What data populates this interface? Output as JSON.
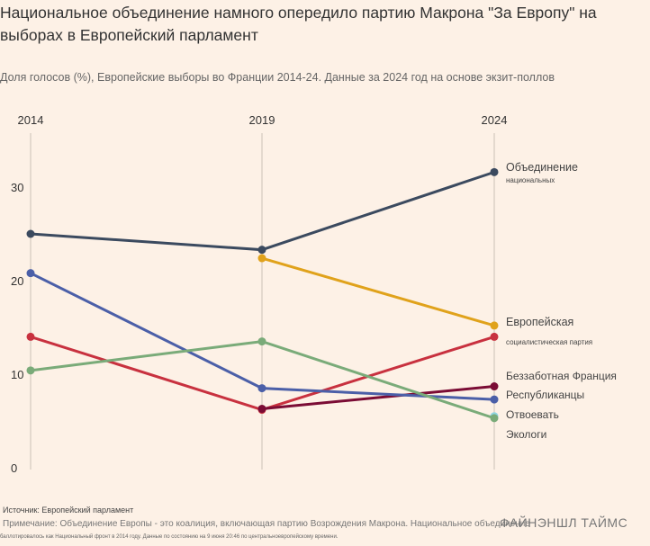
{
  "title": "Национальное объединение намного опередило партию Макрона \"За Европу\" на выборах в Европейский парламент",
  "subtitle": "Доля голосов (%), Европейские выборы во Франции 2014-24. Данные за 2024 год на основе экзит-поллов",
  "source": "Источник: Европейский парламент",
  "note": "Примечание: Объединение Европы - это коалиция, включающая партию Возрождения Макрона. Национальное объединение",
  "note2": "баллотировалось как Национальный фронт в 2014 году. Данные по состоянию на 9 июня 20:46 по центральноевропейскому времени.",
  "brand": "ФАЙНЭНШЛ ТАЙМС",
  "chart_data": {
    "type": "line",
    "x": [
      2014,
      2019,
      2024
    ],
    "x_tick_labels": [
      "2014",
      "2019",
      "2024"
    ],
    "y_ticks": [
      0,
      10,
      20,
      30
    ],
    "ylim": [
      0,
      35
    ],
    "grid": "vertical lines at years",
    "series": [
      {
        "name": "Объединение",
        "name2": "национальных",
        "color": "#3b4a5f",
        "values": [
          25.0,
          23.3,
          31.6
        ]
      },
      {
        "name": "",
        "color": "#e0a21b",
        "values": [
          null,
          22.4,
          15.2
        ]
      },
      {
        "name": "Европейская",
        "name2": "социалистическая партия",
        "color": "#c8313f",
        "values": [
          14.0,
          6.2,
          14.0
        ]
      },
      {
        "name": "Беззаботная Франция",
        "color": "#7b0c35",
        "values": [
          null,
          6.3,
          8.7
        ]
      },
      {
        "name": "Республиканцы",
        "color": "#4b5fa8",
        "values": [
          20.8,
          8.5,
          7.3
        ]
      },
      {
        "name": "Отвоевать",
        "color": "#8fd5e2",
        "values": [
          null,
          null,
          5.5
        ]
      },
      {
        "name": "Экологи",
        "color": "#7aab79",
        "values": [
          10.4,
          13.5,
          5.3
        ]
      }
    ]
  }
}
